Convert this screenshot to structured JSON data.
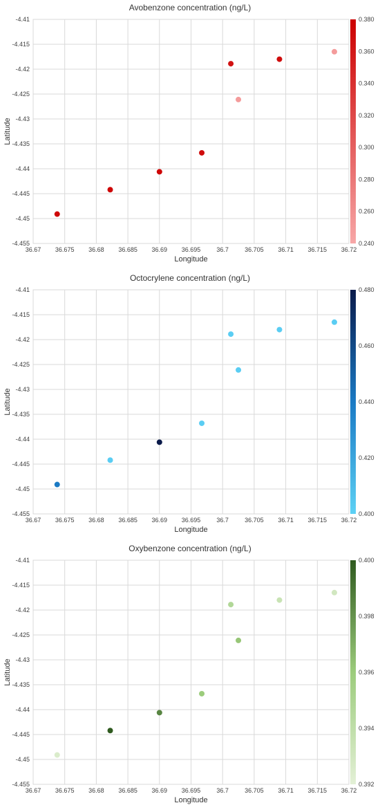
{
  "chart_data": [
    {
      "type": "scatter",
      "title": "Avobenzone concentration (ng/L)",
      "xlabel": "Longitude",
      "ylabel": "Latitude",
      "xlim": [
        36.67,
        36.72
      ],
      "ylim": [
        -4.455,
        -4.41
      ],
      "x_ticks": [
        "36.67",
        "36.675",
        "36.68",
        "36.685",
        "36.69",
        "36.695",
        "36.7",
        "36.705",
        "36.71",
        "36.715",
        "36.72"
      ],
      "y_ticks": [
        "-4.41",
        "-4.415",
        "-4.42",
        "-4.425",
        "-4.43",
        "-4.435",
        "-4.44",
        "-4.445",
        "-4.45",
        "-4.455"
      ],
      "grid": true,
      "colorbar": {
        "min": 0.24,
        "max": 0.38,
        "ticks": [
          "0.380",
          "0.360",
          "0.340",
          "0.320",
          "0.300",
          "0.280",
          "0.260",
          "0.240"
        ],
        "color_low": "#f7a7a7",
        "color_high": "#cc0000"
      },
      "points": [
        {
          "x": 36.6738,
          "y": -4.4491,
          "value": 0.375
        },
        {
          "x": 36.6822,
          "y": -4.4442,
          "value": 0.375
        },
        {
          "x": 36.69,
          "y": -4.4406,
          "value": 0.375
        },
        {
          "x": 36.6967,
          "y": -4.4368,
          "value": 0.37
        },
        {
          "x": 36.7013,
          "y": -4.4189,
          "value": 0.365
        },
        {
          "x": 36.7025,
          "y": -4.4261,
          "value": 0.25
        },
        {
          "x": 36.709,
          "y": -4.418,
          "value": 0.37
        },
        {
          "x": 36.7177,
          "y": -4.4165,
          "value": 0.25
        }
      ]
    },
    {
      "type": "scatter",
      "title": "Octocrylene concentration (ng/L)",
      "xlabel": "Longitude",
      "ylabel": "Latitude",
      "xlim": [
        36.67,
        36.72
      ],
      "ylim": [
        -4.455,
        -4.41
      ],
      "x_ticks": [
        "36.67",
        "36.675",
        "36.68",
        "36.685",
        "36.69",
        "36.695",
        "36.7",
        "36.705",
        "36.71",
        "36.715",
        "36.72"
      ],
      "y_ticks": [
        "-4.41",
        "-4.415",
        "-4.42",
        "-4.425",
        "-4.43",
        "-4.435",
        "-4.44",
        "-4.445",
        "-4.45",
        "-4.455"
      ],
      "grid": true,
      "colorbar": {
        "min": 0.4,
        "max": 0.48,
        "ticks": [
          "0.480",
          "0.460",
          "0.440",
          "0.420",
          "0.400"
        ],
        "color_low": "#5dd1f5",
        "color_mid": "#1a7ac4",
        "color_high": "#0a1a4a"
      },
      "points": [
        {
          "x": 36.6738,
          "y": -4.4491,
          "value": 0.44
        },
        {
          "x": 36.6822,
          "y": -4.4442,
          "value": 0.402
        },
        {
          "x": 36.69,
          "y": -4.4406,
          "value": 0.48
        },
        {
          "x": 36.6967,
          "y": -4.4368,
          "value": 0.402
        },
        {
          "x": 36.7013,
          "y": -4.4189,
          "value": 0.402
        },
        {
          "x": 36.7025,
          "y": -4.4261,
          "value": 0.402
        },
        {
          "x": 36.709,
          "y": -4.418,
          "value": 0.402
        },
        {
          "x": 36.7177,
          "y": -4.4165,
          "value": 0.402
        }
      ]
    },
    {
      "type": "scatter",
      "title": "Oxybenzone concentration (ng/L)",
      "xlabel": "Longitude",
      "ylabel": "Latitude",
      "xlim": [
        36.67,
        36.72
      ],
      "ylim": [
        -4.455,
        -4.41
      ],
      "x_ticks": [
        "36.67",
        "36.675",
        "36.68",
        "36.685",
        "36.69",
        "36.695",
        "36.7",
        "36.705",
        "36.71",
        "36.715",
        "36.72"
      ],
      "y_ticks": [
        "-4.41",
        "-4.415",
        "-4.42",
        "-4.425",
        "-4.43",
        "-4.435",
        "-4.44",
        "-4.445",
        "-4.45",
        "-4.455"
      ],
      "grid": true,
      "colorbar": {
        "min": 0.392,
        "max": 0.4,
        "ticks": [
          "0.400",
          "0.398",
          "0.396",
          "0.394",
          "0.392"
        ],
        "color_low": "#e3f0d6",
        "color_mid": "#9ccc7c",
        "color_high": "#2f5a1f"
      },
      "points": [
        {
          "x": 36.6738,
          "y": -4.4491,
          "value": 0.3925
        },
        {
          "x": 36.6822,
          "y": -4.4442,
          "value": 0.4
        },
        {
          "x": 36.69,
          "y": -4.4406,
          "value": 0.3985
        },
        {
          "x": 36.6967,
          "y": -4.4368,
          "value": 0.396
        },
        {
          "x": 36.7013,
          "y": -4.4189,
          "value": 0.3948
        },
        {
          "x": 36.7025,
          "y": -4.4261,
          "value": 0.3962
        },
        {
          "x": 36.709,
          "y": -4.418,
          "value": 0.3935
        },
        {
          "x": 36.7177,
          "y": -4.4165,
          "value": 0.393
        }
      ]
    }
  ]
}
